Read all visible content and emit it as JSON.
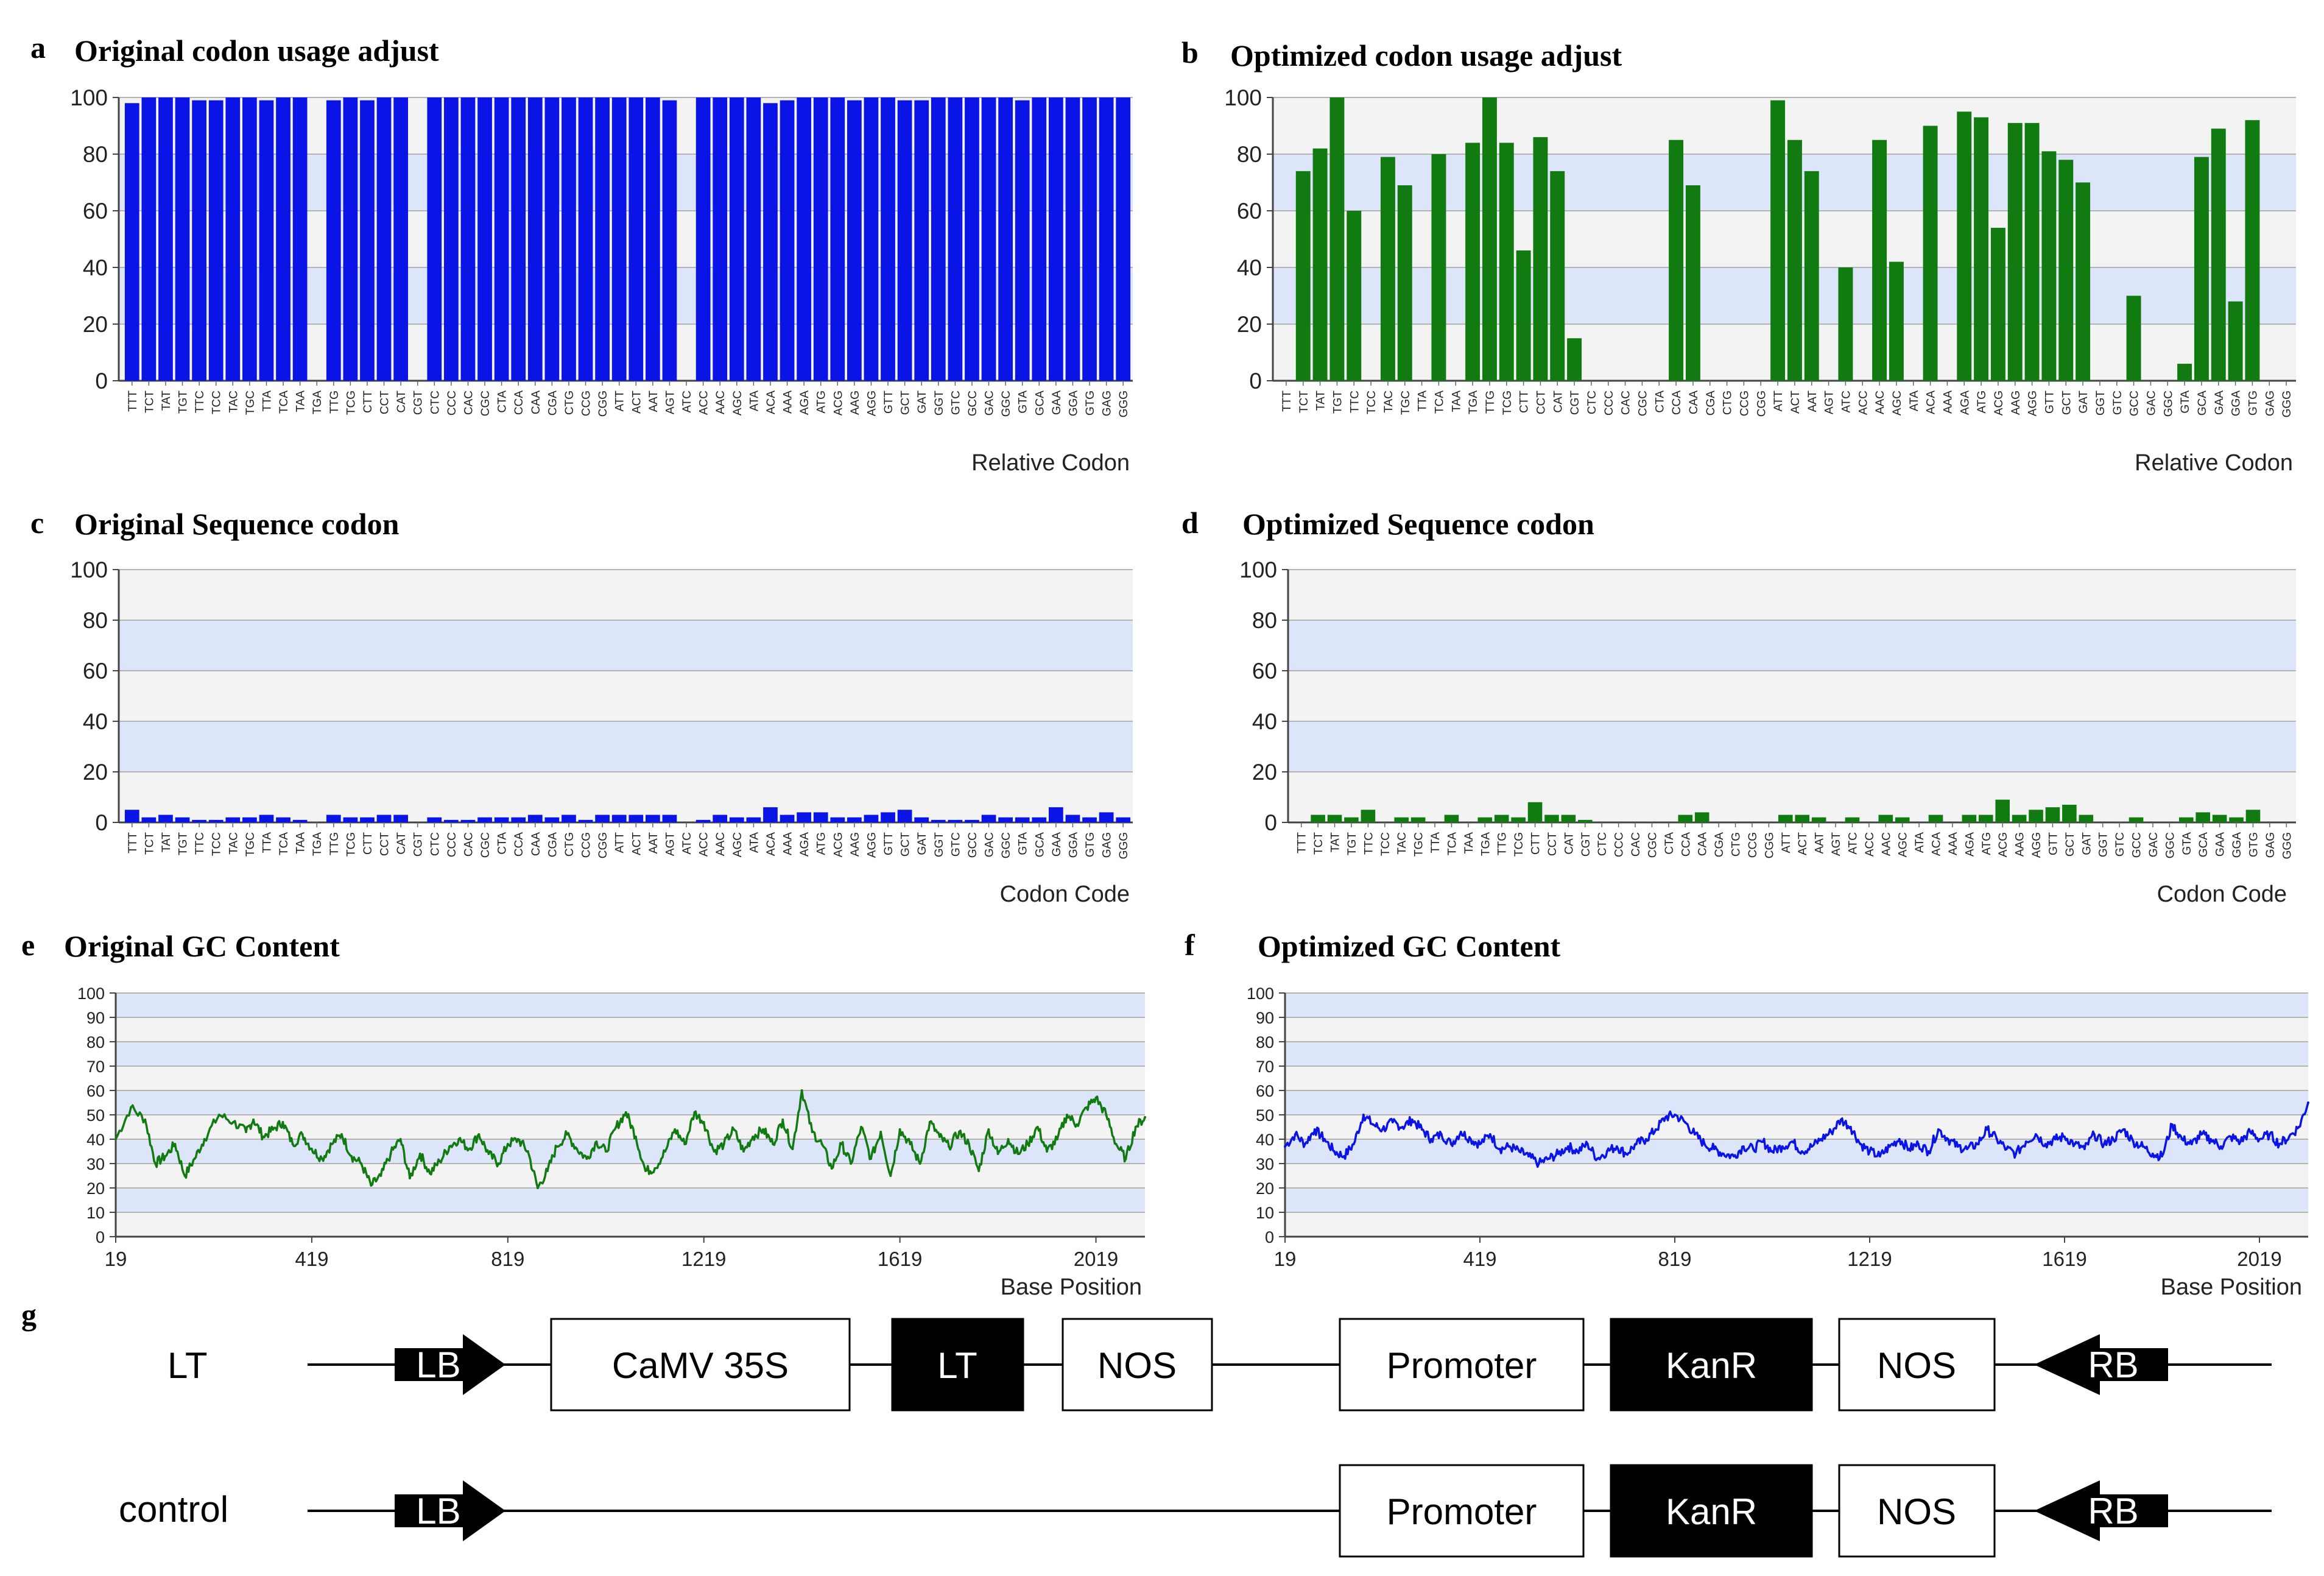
{
  "panel_labels": {
    "a": "a",
    "b": "b",
    "c": "c",
    "d": "d",
    "e": "e",
    "f": "f",
    "g": "g"
  },
  "colors": {
    "blue": "#0a14e6",
    "green": "#117a11",
    "band": "#dde5fa",
    "band_light": "#f3f3f3",
    "grid": "#b4b4b4"
  },
  "chart_data": [
    {
      "id": "a",
      "type": "bar",
      "title": "Original codon usage adjust",
      "xlabel": "Relative Codon",
      "ylim": [
        0,
        100
      ],
      "yticks": [
        "0",
        "20",
        "40",
        "60",
        "80",
        "100"
      ],
      "color": "#0a14e6",
      "categories": [
        "TTT",
        "TCT",
        "TAT",
        "TGT",
        "TTC",
        "TCC",
        "TAC",
        "TGC",
        "TTA",
        "TCA",
        "TAA",
        "TGA",
        "TTG",
        "TCG",
        "CTT",
        "CCT",
        "CAT",
        "CGT",
        "CTC",
        "CCC",
        "CAC",
        "CGC",
        "CTA",
        "CCA",
        "CAA",
        "CGA",
        "CTG",
        "CCG",
        "CGG",
        "ATT",
        "ACT",
        "AAT",
        "AGT",
        "ATC",
        "ACC",
        "AAC",
        "AGC",
        "ATA",
        "ACA",
        "AAA",
        "AGA",
        "ATG",
        "ACG",
        "AAG",
        "AGG",
        "GTT",
        "GCT",
        "GAT",
        "GGT",
        "GTC",
        "GCC",
        "GAC",
        "GGC",
        "GTA",
        "GCA",
        "GAA",
        "GGA",
        "GTG",
        "GAG",
        "GGG"
      ],
      "values": [
        98,
        100,
        100,
        100,
        99,
        99,
        100,
        100,
        99,
        100,
        100,
        0,
        99,
        100,
        99,
        100,
        100,
        0,
        100,
        100,
        100,
        100,
        100,
        100,
        100,
        100,
        100,
        100,
        100,
        100,
        100,
        100,
        99,
        0,
        100,
        100,
        100,
        100,
        98,
        99,
        100,
        100,
        100,
        99,
        100,
        100,
        99,
        99,
        100,
        100,
        100,
        100,
        100,
        99,
        100,
        100,
        100,
        100,
        100,
        100
      ]
    },
    {
      "id": "b",
      "type": "bar",
      "title": "Optimized codon usage adjust",
      "xlabel": "Relative Codon",
      "ylim": [
        0,
        100
      ],
      "yticks": [
        "0",
        "20",
        "40",
        "60",
        "80",
        "100"
      ],
      "color": "#117a11",
      "categories": [
        "TTT",
        "TCT",
        "TAT",
        "TGT",
        "TTC",
        "TCC",
        "TAC",
        "TGC",
        "TTA",
        "TCA",
        "TAA",
        "TGA",
        "TTG",
        "TCG",
        "CTT",
        "CCT",
        "CAT",
        "CGT",
        "CTC",
        "CCC",
        "CAC",
        "CGC",
        "CTA",
        "CCA",
        "CAA",
        "CGA",
        "CTG",
        "CCG",
        "CGG",
        "ATT",
        "ACT",
        "AAT",
        "AGT",
        "ATC",
        "ACC",
        "AAC",
        "AGC",
        "ATA",
        "ACA",
        "AAA",
        "AGA",
        "ATG",
        "ACG",
        "AAG",
        "AGG",
        "GTT",
        "GCT",
        "GAT",
        "GGT",
        "GTC",
        "GCC",
        "GAC",
        "GGC",
        "GTA",
        "GCA",
        "GAA",
        "GGA",
        "GTG",
        "GAG",
        "GGG"
      ],
      "values": [
        0,
        74,
        82,
        100,
        60,
        0,
        79,
        69,
        0,
        80,
        0,
        84,
        100,
        84,
        46,
        86,
        74,
        15,
        0,
        0,
        0,
        0,
        0,
        85,
        69,
        0,
        0,
        0,
        0,
        99,
        85,
        74,
        0,
        40,
        0,
        85,
        42,
        0,
        90,
        0,
        95,
        93,
        54,
        91,
        91,
        81,
        78,
        70,
        0,
        0,
        30,
        0,
        0,
        6,
        79,
        89,
        28,
        92,
        0,
        0
      ]
    },
    {
      "id": "c",
      "type": "bar",
      "title": "Original Sequence codon",
      "xlabel": "Codon Code",
      "ylim": [
        0,
        100
      ],
      "yticks": [
        "0",
        "20",
        "40",
        "60",
        "80",
        "100"
      ],
      "color": "#0a14e6",
      "categories": [
        "TTT",
        "TCT",
        "TAT",
        "TGT",
        "TTC",
        "TCC",
        "TAC",
        "TGC",
        "TTA",
        "TCA",
        "TAA",
        "TGA",
        "TTG",
        "TCG",
        "CTT",
        "CCT",
        "CAT",
        "CGT",
        "CTC",
        "CCC",
        "CAC",
        "CGC",
        "CTA",
        "CCA",
        "CAA",
        "CGA",
        "CTG",
        "CCG",
        "CGG",
        "ATT",
        "ACT",
        "AAT",
        "AGT",
        "ATC",
        "ACC",
        "AAC",
        "AGC",
        "ATA",
        "ACA",
        "AAA",
        "AGA",
        "ATG",
        "ACG",
        "AAG",
        "AGG",
        "GTT",
        "GCT",
        "GAT",
        "GGT",
        "GTC",
        "GCC",
        "GAC",
        "GGC",
        "GTA",
        "GCA",
        "GAA",
        "GGA",
        "GTG",
        "GAG",
        "GGG"
      ],
      "values": [
        5,
        2,
        3,
        2,
        1,
        1,
        2,
        2,
        3,
        2,
        1,
        0,
        3,
        2,
        2,
        3,
        3,
        0,
        2,
        1,
        1,
        2,
        2,
        2,
        3,
        2,
        3,
        1,
        3,
        3,
        3,
        3,
        3,
        0,
        1,
        3,
        2,
        2,
        6,
        3,
        4,
        4,
        2,
        2,
        3,
        4,
        5,
        2,
        1,
        1,
        1,
        3,
        2,
        2,
        2,
        6,
        3,
        2,
        4,
        2
      ]
    },
    {
      "id": "d",
      "type": "bar",
      "title": "Optimized Sequence codon",
      "xlabel": "Codon Code",
      "ylim": [
        0,
        100
      ],
      "yticks": [
        "0",
        "20",
        "40",
        "60",
        "80",
        "100"
      ],
      "color": "#117a11",
      "categories": [
        "TTT",
        "TCT",
        "TAT",
        "TGT",
        "TTC",
        "TCC",
        "TAC",
        "TGC",
        "TTA",
        "TCA",
        "TAA",
        "TGA",
        "TTG",
        "TCG",
        "CTT",
        "CCT",
        "CAT",
        "CGT",
        "CTC",
        "CCC",
        "CAC",
        "CGC",
        "CTA",
        "CCA",
        "CAA",
        "CGA",
        "CTG",
        "CCG",
        "CGG",
        "ATT",
        "ACT",
        "AAT",
        "AGT",
        "ATC",
        "ACC",
        "AAC",
        "AGC",
        "ATA",
        "ACA",
        "AAA",
        "AGA",
        "ATG",
        "ACG",
        "AAG",
        "AGG",
        "GTT",
        "GCT",
        "GAT",
        "GGT",
        "GTC",
        "GCC",
        "GAC",
        "GGC",
        "GTA",
        "GCA",
        "GAA",
        "GGA",
        "GTG",
        "GAG",
        "GGG"
      ],
      "values": [
        0,
        3,
        3,
        2,
        5,
        0,
        2,
        2,
        0,
        3,
        0,
        2,
        3,
        2,
        8,
        3,
        3,
        1,
        0,
        0,
        0,
        0,
        0,
        3,
        4,
        0,
        0,
        0,
        0,
        3,
        3,
        2,
        0,
        2,
        0,
        3,
        2,
        0,
        3,
        0,
        3,
        3,
        9,
        3,
        5,
        6,
        7,
        3,
        0,
        0,
        2,
        0,
        0,
        2,
        4,
        3,
        2,
        5,
        0,
        0
      ]
    },
    {
      "id": "e",
      "type": "line",
      "title": "Original GC Content",
      "xlabel": "Base Position",
      "xlim": [
        19,
        2119
      ],
      "ylim": [
        0,
        100
      ],
      "xticks": [
        19,
        419,
        819,
        1219,
        1619,
        2019
      ],
      "yticks": [
        "0",
        "10",
        "20",
        "30",
        "40",
        "50",
        "60",
        "70",
        "80",
        "90",
        "100"
      ],
      "color": "#117a11",
      "x": [
        19,
        50,
        79,
        100,
        120,
        140,
        160,
        180,
        200,
        230,
        259,
        285,
        300,
        320,
        340,
        360,
        380,
        400,
        419,
        440,
        460,
        480,
        500,
        520,
        540,
        560,
        580,
        600,
        619,
        640,
        660,
        680,
        700,
        719,
        740,
        760,
        780,
        800,
        819,
        840,
        860,
        880,
        900,
        919,
        940,
        960,
        980,
        1000,
        1019,
        1040,
        1060,
        1080,
        1100,
        1119,
        1140,
        1160,
        1180,
        1200,
        1219,
        1240,
        1260,
        1280,
        1300,
        1319,
        1340,
        1360,
        1380,
        1400,
        1419,
        1440,
        1460,
        1480,
        1500,
        1519,
        1540,
        1560,
        1580,
        1600,
        1619,
        1640,
        1660,
        1680,
        1700,
        1719,
        1740,
        1760,
        1780,
        1800,
        1819,
        1840,
        1860,
        1880,
        1900,
        1919,
        1940,
        1960,
        1980,
        2000,
        2019,
        2040,
        2060,
        2080,
        2100,
        2119
      ],
      "y": [
        40,
        53,
        48,
        30,
        33,
        38,
        25,
        32,
        40,
        50,
        47,
        43,
        48,
        41,
        44,
        47,
        38,
        42,
        36,
        32,
        38,
        42,
        33,
        30,
        21,
        25,
        34,
        40,
        24,
        34,
        26,
        31,
        37,
        40,
        36,
        42,
        34,
        30,
        38,
        40,
        35,
        20,
        27,
        37,
        42,
        36,
        32,
        39,
        35,
        45,
        51,
        41,
        27,
        28,
        35,
        44,
        38,
        51,
        47,
        35,
        38,
        44,
        35,
        41,
        44,
        38,
        48,
        36,
        60,
        43,
        38,
        28,
        38,
        30,
        45,
        32,
        43,
        25,
        44,
        38,
        30,
        47,
        41,
        37,
        43,
        38,
        27,
        44,
        34,
        40,
        34,
        38,
        45,
        35,
        40,
        50,
        46,
        53,
        57,
        50,
        38,
        32,
        45,
        49
      ]
    },
    {
      "id": "f",
      "type": "line",
      "title": "Optimized GC Content",
      "xlabel": "Base Position",
      "xlim": [
        19,
        2119
      ],
      "ylim": [
        0,
        100
      ],
      "xticks": [
        19,
        419,
        819,
        1219,
        1619,
        2019
      ],
      "yticks": [
        "0",
        "10",
        "20",
        "30",
        "40",
        "50",
        "60",
        "70",
        "80",
        "90",
        "100"
      ],
      "color": "#0a14e6",
      "x": [
        19,
        40,
        60,
        80,
        100,
        120,
        140,
        160,
        180,
        200,
        219,
        240,
        260,
        280,
        300,
        319,
        340,
        360,
        380,
        400,
        419,
        440,
        460,
        480,
        500,
        519,
        540,
        560,
        580,
        600,
        619,
        640,
        660,
        680,
        700,
        719,
        740,
        760,
        780,
        800,
        819,
        840,
        860,
        880,
        900,
        919,
        940,
        960,
        980,
        1000,
        1019,
        1040,
        1060,
        1080,
        1100,
        1119,
        1140,
        1160,
        1180,
        1200,
        1219,
        1240,
        1260,
        1280,
        1300,
        1319,
        1340,
        1360,
        1380,
        1400,
        1419,
        1440,
        1460,
        1480,
        1500,
        1519,
        1540,
        1560,
        1580,
        1600,
        1619,
        1640,
        1660,
        1680,
        1700,
        1719,
        1740,
        1760,
        1780,
        1800,
        1819,
        1840,
        1860,
        1880,
        1900,
        1919,
        1940,
        1960,
        1980,
        2000,
        2019,
        2040,
        2060,
        2080,
        2100,
        2119
      ],
      "y": [
        37,
        42,
        38,
        44,
        40,
        35,
        33,
        38,
        50,
        46,
        44,
        47,
        45,
        48,
        44,
        40,
        42,
        38,
        43,
        40,
        38,
        42,
        36,
        37,
        35,
        33,
        30,
        32,
        34,
        37,
        35,
        38,
        32,
        35,
        37,
        34,
        38,
        40,
        44,
        49,
        50,
        47,
        42,
        38,
        36,
        34,
        33,
        37,
        36,
        39,
        35,
        37,
        39,
        35,
        37,
        40,
        43,
        48,
        45,
        38,
        35,
        33,
        37,
        40,
        36,
        38,
        35,
        44,
        40,
        37,
        36,
        38,
        44,
        40,
        36,
        34,
        39,
        42,
        38,
        40,
        41,
        38,
        36,
        42,
        38,
        40,
        44,
        39,
        37,
        34,
        33,
        46,
        40,
        38,
        42,
        40,
        37,
        41,
        39,
        43,
        40,
        42,
        38,
        41,
        45,
        55
      ]
    }
  ],
  "constructs": [
    {
      "name": "LT",
      "lb": "LB",
      "rb": "RB",
      "boxes": [
        {
          "text": "CaMV 35S",
          "style": "white"
        },
        {
          "text": "LT",
          "style": "black"
        },
        {
          "text": "NOS",
          "style": "white"
        },
        {
          "text": "Promoter",
          "style": "white"
        },
        {
          "text": "KanR",
          "style": "black"
        },
        {
          "text": "NOS",
          "style": "white"
        }
      ]
    },
    {
      "name": "control",
      "lb": "LB",
      "rb": "RB",
      "boxes": [
        {
          "text": "Promoter",
          "style": "white"
        },
        {
          "text": "KanR",
          "style": "black"
        },
        {
          "text": "NOS",
          "style": "white"
        }
      ]
    }
  ]
}
